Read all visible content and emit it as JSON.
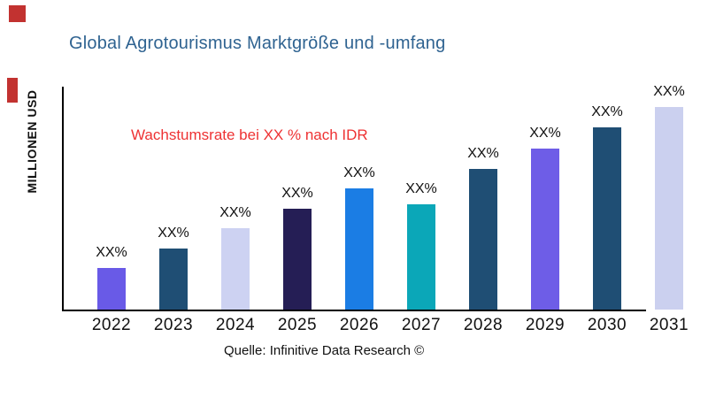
{
  "chart_data": {
    "type": "bar",
    "title": "Global Agrotourismus Marktgröße und -umfang",
    "title_color": "#2f6391",
    "ylabel": "MILLIONEN USD",
    "xlabel": "",
    "annotation": "Wachstumsrate bei XX % nach IDR",
    "annotation_color": "#ee3233",
    "source_note": "Quelle: Infinitive Data Research ©",
    "categories": [
      "2022",
      "2023",
      "2024",
      "2025",
      "2026",
      "2027",
      "2028",
      "2029",
      "2030",
      "2031"
    ],
    "value_labels": [
      "XX%",
      "XX%",
      "XX%",
      "XX%",
      "XX%",
      "XX%",
      "XX%",
      "XX%",
      "XX%",
      "XX%"
    ],
    "relative_values": [
      47,
      69,
      92,
      114,
      137,
      119,
      159,
      182,
      206,
      229
    ],
    "bar_colors": [
      "#695ae7",
      "#1f4e74",
      "#cdd2f2",
      "#251e55",
      "#1b7de4",
      "#0ba7b8",
      "#1f4e74",
      "#6e5de7",
      "#1f4e74",
      "#cbd0ef"
    ],
    "axis": {
      "y_ticks": "none",
      "grid": false,
      "legend": "none",
      "axis_color": "#000000"
    }
  },
  "decorations": {
    "patch_color": "#c23230"
  }
}
